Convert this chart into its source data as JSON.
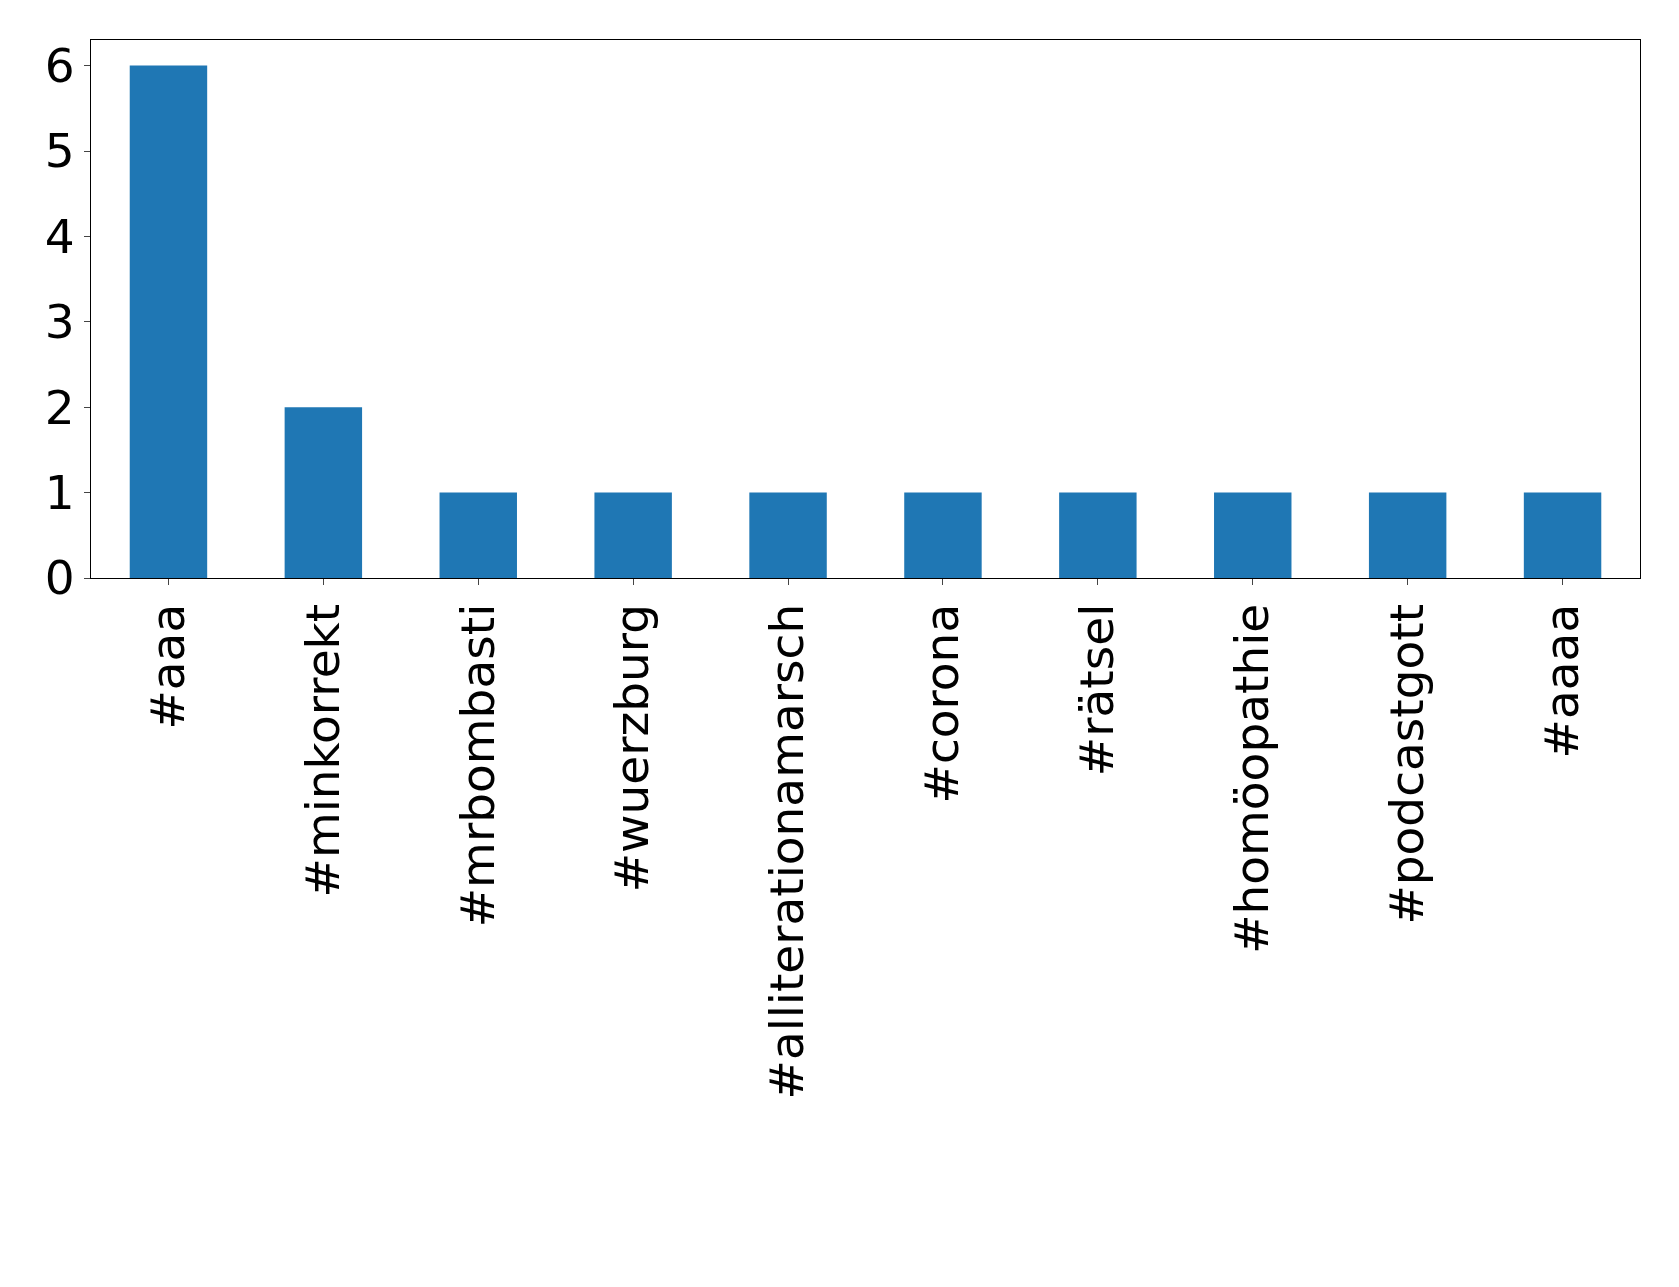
{
  "chart_data": {
    "type": "bar",
    "categories": [
      "#aaa",
      "#minkorrekt",
      "#mrbombasti",
      "#wuerzburg",
      "#alliterationamarsch",
      "#corona",
      "#rätsel",
      "#homöopathie",
      "#podcastgott",
      "#aaaa"
    ],
    "values": [
      6,
      2,
      1,
      1,
      1,
      1,
      1,
      1,
      1,
      1
    ],
    "color": "#1f77b4",
    "ylim": [
      0,
      6.3
    ],
    "yticks": [
      0,
      1,
      2,
      3,
      4,
      5,
      6
    ],
    "grid": false,
    "legend": false
  }
}
